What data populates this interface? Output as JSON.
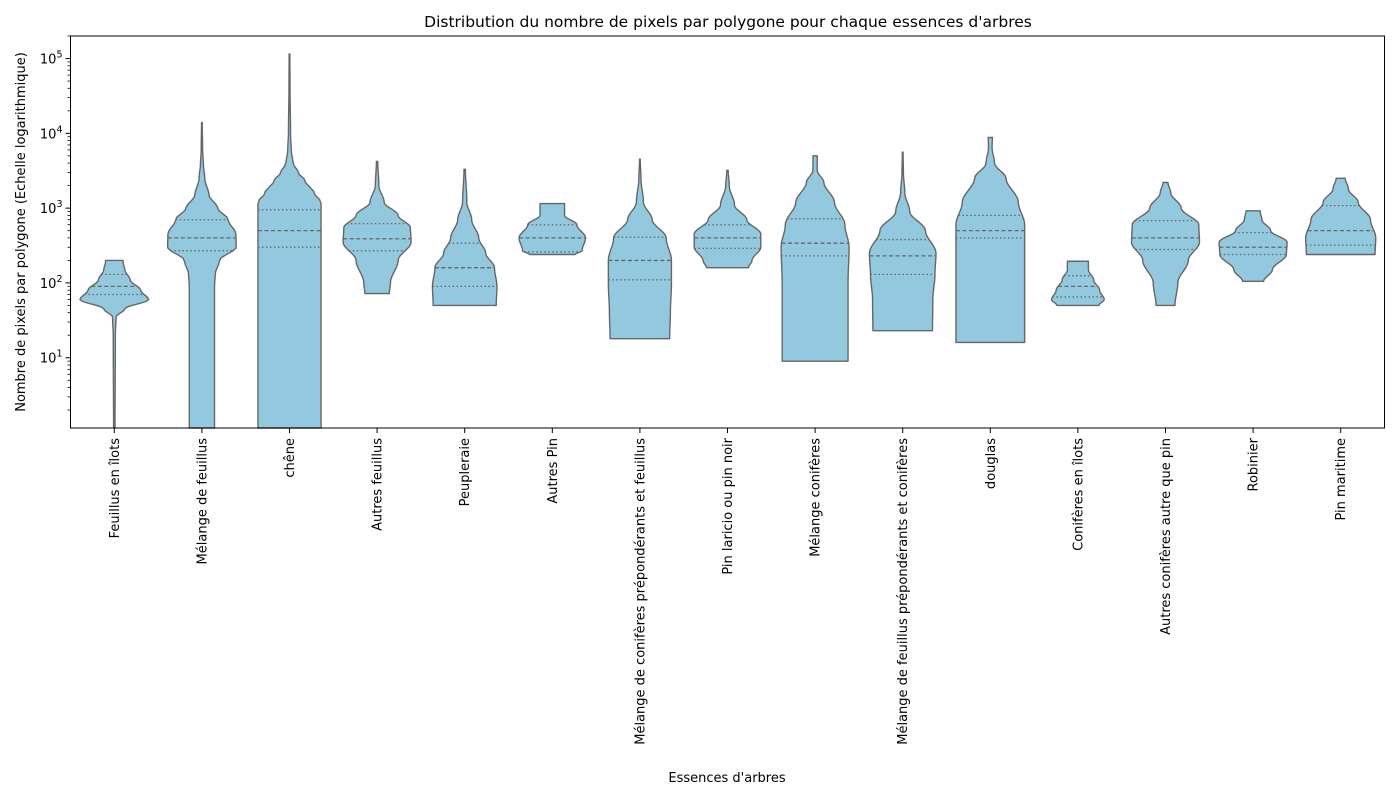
{
  "chart_data": {
    "type": "violin",
    "title": "Distribution du nombre de pixels par polygone pour chaque essences d'arbres",
    "xlabel": "Essences d'arbres",
    "ylabel": "Nombre de pixels par polygone (Echelle logarithmique)",
    "yscale": "log",
    "ylim": [
      1.15,
      200000
    ],
    "yticks": [
      {
        "base": "10",
        "exp": "1",
        "value": 10
      },
      {
        "base": "10",
        "exp": "2",
        "value": 100
      },
      {
        "base": "10",
        "exp": "3",
        "value": 1000
      },
      {
        "base": "10",
        "exp": "4",
        "value": 10000
      },
      {
        "base": "10",
        "exp": "5",
        "value": 100000
      }
    ],
    "grid": false,
    "fill_color": "#93c9df",
    "edge_color": "#666666",
    "series": [
      {
        "name": "Feuillus en îlots",
        "min": 1,
        "max": 200,
        "q1": 70,
        "median": 90,
        "q3": 130,
        "profile": [
          [
            1,
            0.02
          ],
          [
            20,
            0.03
          ],
          [
            35,
            0.05
          ],
          [
            45,
            0.3
          ],
          [
            60,
            0.98
          ],
          [
            80,
            0.75
          ],
          [
            110,
            0.45
          ],
          [
            150,
            0.3
          ],
          [
            190,
            0.25
          ],
          [
            200,
            0.25
          ]
        ]
      },
      {
        "name": "Mélange de feuillus",
        "min": 1,
        "max": 14000,
        "q1": 270,
        "median": 400,
        "q3": 700,
        "profile": [
          [
            1,
            0.36
          ],
          [
            90,
            0.36
          ],
          [
            130,
            0.38
          ],
          [
            200,
            0.5
          ],
          [
            300,
            0.98
          ],
          [
            450,
            0.97
          ],
          [
            700,
            0.75
          ],
          [
            1000,
            0.45
          ],
          [
            1500,
            0.2
          ],
          [
            2500,
            0.08
          ],
          [
            4000,
            0.04
          ],
          [
            6000,
            0.02
          ],
          [
            14000,
            0.01
          ]
        ]
      },
      {
        "name": "chêne",
        "min": 1,
        "max": 115000,
        "q1": 300,
        "median": 500,
        "q3": 950,
        "profile": [
          [
            1,
            0.9
          ],
          [
            1200,
            0.9
          ],
          [
            1600,
            0.7
          ],
          [
            2300,
            0.45
          ],
          [
            3000,
            0.25
          ],
          [
            4000,
            0.1
          ],
          [
            6000,
            0.05
          ],
          [
            10000,
            0.03
          ],
          [
            40000,
            0.015
          ],
          [
            115000,
            0.01
          ]
        ]
      },
      {
        "name": "Autres feuillus",
        "min": 72,
        "max": 4200,
        "q1": 270,
        "median": 390,
        "q3": 620,
        "profile": [
          [
            72,
            0.35
          ],
          [
            100,
            0.38
          ],
          [
            200,
            0.6
          ],
          [
            350,
            0.97
          ],
          [
            550,
            0.95
          ],
          [
            800,
            0.6
          ],
          [
            1200,
            0.2
          ],
          [
            2000,
            0.05
          ],
          [
            4200,
            0.02
          ]
        ]
      },
      {
        "name": "Peupleraie",
        "min": 50,
        "max": 3300,
        "q1": 90,
        "median": 160,
        "q3": 340,
        "profile": [
          [
            50,
            0.9
          ],
          [
            90,
            0.92
          ],
          [
            160,
            0.85
          ],
          [
            250,
            0.6
          ],
          [
            400,
            0.4
          ],
          [
            700,
            0.2
          ],
          [
            1200,
            0.06
          ],
          [
            3300,
            0.02
          ]
        ]
      },
      {
        "name": "Autres Pin",
        "min": 240,
        "max": 1150,
        "q1": 260,
        "median": 400,
        "q3": 600,
        "profile": [
          [
            240,
            0.65
          ],
          [
            270,
            0.85
          ],
          [
            400,
            0.95
          ],
          [
            600,
            0.7
          ],
          [
            800,
            0.35
          ],
          [
            1150,
            0.35
          ]
        ]
      },
      {
        "name": "Mélange de conifères prépondérants et feuillus",
        "min": 18,
        "max": 4500,
        "q1": 110,
        "median": 200,
        "q3": 410,
        "profile": [
          [
            18,
            0.85
          ],
          [
            40,
            0.87
          ],
          [
            100,
            0.9
          ],
          [
            200,
            0.9
          ],
          [
            400,
            0.75
          ],
          [
            700,
            0.35
          ],
          [
            1200,
            0.1
          ],
          [
            2500,
            0.03
          ],
          [
            4500,
            0.01
          ]
        ]
      },
      {
        "name": "Pin laricio ou pin noir",
        "min": 160,
        "max": 3200,
        "q1": 290,
        "median": 400,
        "q3": 600,
        "profile": [
          [
            160,
            0.6
          ],
          [
            200,
            0.7
          ],
          [
            300,
            0.95
          ],
          [
            450,
            0.95
          ],
          [
            700,
            0.55
          ],
          [
            1100,
            0.2
          ],
          [
            2000,
            0.05
          ],
          [
            3200,
            0.02
          ]
        ]
      },
      {
        "name": "Mélange conifères",
        "min": 9,
        "max": 5000,
        "q1": 230,
        "median": 340,
        "q3": 720,
        "profile": [
          [
            9,
            0.94
          ],
          [
            100,
            0.94
          ],
          [
            300,
            0.97
          ],
          [
            600,
            0.85
          ],
          [
            1200,
            0.55
          ],
          [
            2200,
            0.25
          ],
          [
            3200,
            0.06
          ],
          [
            5000,
            0.06
          ]
        ]
      },
      {
        "name": "Mélange de feuillus prépondérants et conifères",
        "min": 23,
        "max": 5600,
        "q1": 130,
        "median": 230,
        "q3": 380,
        "profile": [
          [
            23,
            0.85
          ],
          [
            60,
            0.86
          ],
          [
            130,
            0.92
          ],
          [
            250,
            0.95
          ],
          [
            500,
            0.65
          ],
          [
            900,
            0.2
          ],
          [
            1600,
            0.06
          ],
          [
            3000,
            0.02
          ],
          [
            5600,
            0.01
          ]
        ]
      },
      {
        "name": "douglas",
        "min": 16,
        "max": 8800,
        "q1": 400,
        "median": 500,
        "q3": 800,
        "profile": [
          [
            16,
            0.98
          ],
          [
            200,
            0.98
          ],
          [
            600,
            0.98
          ],
          [
            1200,
            0.8
          ],
          [
            2500,
            0.45
          ],
          [
            4000,
            0.12
          ],
          [
            6500,
            0.05
          ],
          [
            8800,
            0.06
          ]
        ]
      },
      {
        "name": "Conifères en îlots",
        "min": 50,
        "max": 195,
        "q1": 65,
        "median": 90,
        "q3": 125,
        "profile": [
          [
            50,
            0.6
          ],
          [
            60,
            0.75
          ],
          [
            80,
            0.62
          ],
          [
            110,
            0.45
          ],
          [
            150,
            0.3
          ],
          [
            195,
            0.3
          ]
        ]
      },
      {
        "name": "Autres conifères autre que pin",
        "min": 50,
        "max": 2200,
        "q1": 280,
        "median": 400,
        "q3": 680,
        "profile": [
          [
            50,
            0.27
          ],
          [
            100,
            0.35
          ],
          [
            200,
            0.65
          ],
          [
            350,
            0.97
          ],
          [
            600,
            0.95
          ],
          [
            1000,
            0.45
          ],
          [
            1600,
            0.15
          ],
          [
            2200,
            0.07
          ]
        ]
      },
      {
        "name": "Robinier",
        "min": 105,
        "max": 920,
        "q1": 240,
        "median": 300,
        "q3": 470,
        "profile": [
          [
            105,
            0.3
          ],
          [
            150,
            0.55
          ],
          [
            240,
            0.95
          ],
          [
            350,
            0.97
          ],
          [
            500,
            0.5
          ],
          [
            700,
            0.25
          ],
          [
            920,
            0.2
          ]
        ]
      },
      {
        "name": "Pin maritime",
        "min": 240,
        "max": 2500,
        "q1": 320,
        "median": 500,
        "q3": 1080,
        "profile": [
          [
            240,
            0.98
          ],
          [
            400,
            1.0
          ],
          [
            700,
            0.85
          ],
          [
            1200,
            0.5
          ],
          [
            1800,
            0.22
          ],
          [
            2500,
            0.13
          ]
        ]
      }
    ]
  }
}
